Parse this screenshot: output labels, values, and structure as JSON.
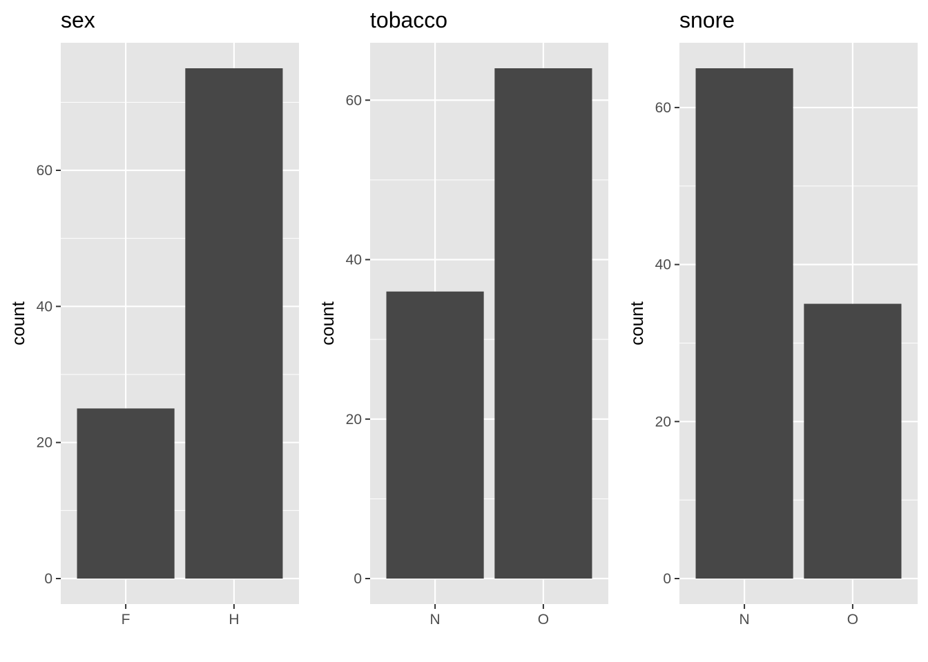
{
  "chart_data": [
    {
      "type": "bar",
      "title": "sex",
      "xlabel": "",
      "ylabel": "count",
      "categories": [
        "F",
        "H"
      ],
      "values": [
        25,
        75
      ],
      "ylim": [
        -3.75,
        78.75
      ],
      "yticks": [
        0,
        20,
        40,
        60
      ],
      "grid": true,
      "bar_color": "#474747",
      "panel_color": "#e5e5e5"
    },
    {
      "type": "bar",
      "title": "tobacco",
      "xlabel": "",
      "ylabel": "count",
      "categories": [
        "N",
        "O"
      ],
      "values": [
        36,
        64
      ],
      "ylim": [
        -3.2,
        67.2
      ],
      "yticks": [
        0,
        20,
        40,
        60
      ],
      "grid": true,
      "bar_color": "#474747",
      "panel_color": "#e5e5e5"
    },
    {
      "type": "bar",
      "title": "snore",
      "xlabel": "",
      "ylabel": "count",
      "categories": [
        "N",
        "O"
      ],
      "values": [
        65,
        35
      ],
      "ylim": [
        -3.25,
        68.25
      ],
      "yticks": [
        0,
        20,
        40,
        60
      ],
      "grid": true,
      "bar_color": "#474747",
      "panel_color": "#e5e5e5"
    }
  ]
}
